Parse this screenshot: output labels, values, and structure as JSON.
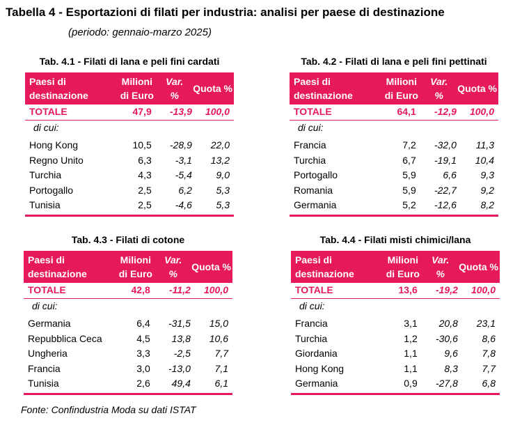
{
  "title": "Tabella 4 - Esportazioni di filati per industria: analisi per paese di destinazione",
  "period": "(periodo: gennaio-marzo 2025)",
  "header": {
    "col1_line1": "Paesi di",
    "col1_line2": "destinazione",
    "col2_line1": "Milioni",
    "col2_line2": "di Euro",
    "col3_line1": "Var.",
    "col3_line2": "%",
    "col4": "Quota %"
  },
  "total_label": "TOTALE",
  "dicui_label": "di cui:",
  "tables": [
    {
      "caption": "Tab. 4.1 - Filati di lana e peli fini cardati",
      "total": {
        "value": "47,9",
        "var": "-13,9",
        "quota": "100,0"
      },
      "rows": [
        {
          "country": "Hong Kong",
          "value": "10,5",
          "var": "-28,9",
          "quota": "22,0"
        },
        {
          "country": "Regno Unito",
          "value": "6,3",
          "var": "-3,1",
          "quota": "13,2"
        },
        {
          "country": "Turchia",
          "value": "4,3",
          "var": "-5,4",
          "quota": "9,0"
        },
        {
          "country": "Portogallo",
          "value": "2,5",
          "var": "6,2",
          "quota": "5,3"
        },
        {
          "country": "Tunisia",
          "value": "2,5",
          "var": "-4,6",
          "quota": "5,3"
        }
      ]
    },
    {
      "caption": "Tab. 4.2 - Filati di lana e peli fini pettinati",
      "total": {
        "value": "64,1",
        "var": "-12,9",
        "quota": "100,0"
      },
      "rows": [
        {
          "country": "Francia",
          "value": "7,2",
          "var": "-32,0",
          "quota": "11,3"
        },
        {
          "country": "Turchia",
          "value": "6,7",
          "var": "-19,1",
          "quota": "10,4"
        },
        {
          "country": "Portogallo",
          "value": "5,9",
          "var": "6,6",
          "quota": "9,3"
        },
        {
          "country": "Romania",
          "value": "5,9",
          "var": "-22,7",
          "quota": "9,2"
        },
        {
          "country": "Germania",
          "value": "5,2",
          "var": "-12,6",
          "quota": "8,2"
        }
      ]
    },
    {
      "caption": "Tab. 4.3 - Filati di cotone",
      "total": {
        "value": "42,8",
        "var": "-11,2",
        "quota": "100,0"
      },
      "rows": [
        {
          "country": "Germania",
          "value": "6,4",
          "var": "-31,5",
          "quota": "15,0"
        },
        {
          "country": "Repubblica Ceca",
          "value": "4,5",
          "var": "13,8",
          "quota": "10,6"
        },
        {
          "country": "Ungheria",
          "value": "3,3",
          "var": "-2,5",
          "quota": "7,7"
        },
        {
          "country": "Francia",
          "value": "3,0",
          "var": "-13,0",
          "quota": "7,1"
        },
        {
          "country": "Tunisia",
          "value": "2,6",
          "var": "49,4",
          "quota": "6,1"
        }
      ]
    },
    {
      "caption": "Tab. 4.4 - Filati misti chimici/lana",
      "total": {
        "value": "13,6",
        "var": "-19,2",
        "quota": "100,0"
      },
      "rows": [
        {
          "country": "Francia",
          "value": "3,1",
          "var": "20,8",
          "quota": "23,1"
        },
        {
          "country": "Turchia",
          "value": "1,2",
          "var": "-30,6",
          "quota": "8,6"
        },
        {
          "country": "Giordania",
          "value": "1,1",
          "var": "9,6",
          "quota": "7,8"
        },
        {
          "country": "Hong Kong",
          "value": "1,1",
          "var": "8,3",
          "quota": "7,7"
        },
        {
          "country": "Germania",
          "value": "0,9",
          "var": "-27,8",
          "quota": "6,8"
        }
      ]
    }
  ],
  "source": "Fonte: Confindustria Moda su dati ISTAT"
}
